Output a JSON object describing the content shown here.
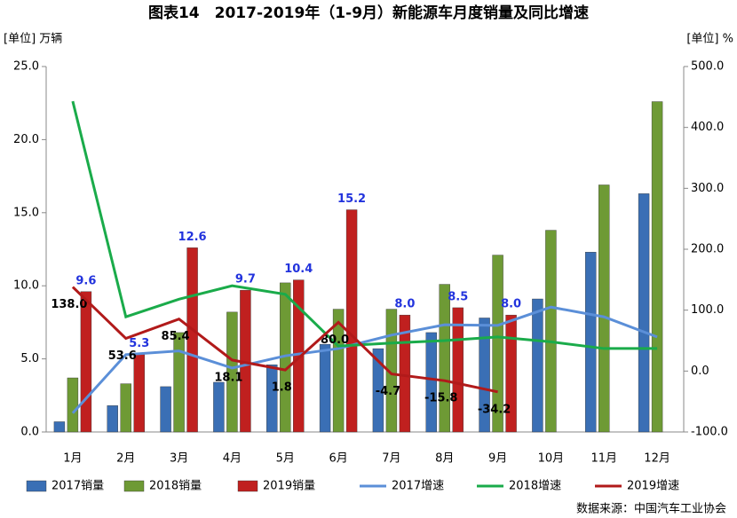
{
  "chart_data": {
    "type": "combo",
    "title": "图表14　2017-2019年（1-9月）新能源车月度销量及同比增速",
    "y_label": "[单位] 万辆",
    "y2_label": "[单位] %",
    "source": "数据来源：中国汽车工业协会",
    "categories": [
      "1月",
      "2月",
      "3月",
      "4月",
      "5月",
      "6月",
      "7月",
      "8月",
      "9月",
      "10月",
      "11月",
      "12月"
    ],
    "ylim": [
      0,
      25
    ],
    "yticks": [
      {
        "value": 0,
        "label": "0.0"
      },
      {
        "value": 5,
        "label": "5.0"
      },
      {
        "value": 10,
        "label": "10.0"
      },
      {
        "value": 15,
        "label": "15.0"
      },
      {
        "value": 20,
        "label": "20.0"
      },
      {
        "value": 25,
        "label": "25.0"
      }
    ],
    "y2lim": [
      -100,
      500
    ],
    "y2ticks": [
      {
        "value": -100,
        "label": "-100.0"
      },
      {
        "value": 0,
        "label": "0.0"
      },
      {
        "value": 100,
        "label": "100.0"
      },
      {
        "value": 200,
        "label": "200.0"
      },
      {
        "value": 300,
        "label": "300.0"
      },
      {
        "value": 400,
        "label": "400.0"
      },
      {
        "value": 500,
        "label": "500.0"
      }
    ],
    "series": [
      {
        "name": "2017销量",
        "type": "bar",
        "color": "#3a6fb5",
        "values": [
          0.7,
          1.8,
          3.1,
          3.4,
          4.6,
          6.0,
          5.7,
          6.8,
          7.8,
          9.1,
          12.3,
          16.3
        ]
      },
      {
        "name": "2018销量",
        "type": "bar",
        "color": "#6e9a35",
        "values": [
          3.7,
          3.3,
          6.8,
          8.2,
          10.2,
          8.4,
          8.4,
          10.1,
          12.1,
          13.8,
          16.9,
          22.6
        ]
      },
      {
        "name": "2019销量",
        "type": "bar",
        "color": "#c0201f",
        "values": [
          9.6,
          5.3,
          12.6,
          9.7,
          10.4,
          15.2,
          8.0,
          8.5,
          8.0,
          null,
          null,
          null
        ],
        "value_labels": [
          "9.6",
          "5.3",
          "12.6",
          "9.7",
          "10.4",
          "15.2",
          "8.0",
          "8.5",
          "8.0",
          null,
          null,
          null
        ]
      },
      {
        "name": "2017增速",
        "type": "line",
        "axis": "y2",
        "color": "#5b8fd8",
        "values": [
          -69,
          27,
          33,
          5,
          25,
          37,
          59,
          76,
          75,
          105,
          89,
          56
        ]
      },
      {
        "name": "2018增速",
        "type": "line",
        "axis": "y2",
        "color": "#1aab4a",
        "values": [
          443,
          89,
          118,
          140,
          126,
          41,
          46,
          50,
          56,
          48,
          37,
          37
        ]
      },
      {
        "name": "2019增速",
        "type": "line",
        "axis": "y2",
        "color": "#b11a1a",
        "values": [
          138.0,
          53.6,
          85.4,
          18.1,
          1.8,
          80.0,
          -4.7,
          -15.8,
          -34.2,
          null,
          null,
          null
        ],
        "value_labels": [
          "138.0",
          "53.6",
          "85.4",
          "18.1",
          "1.8",
          "80.0",
          "-4.7",
          "-15.8",
          "-34.2",
          null,
          null,
          null
        ]
      }
    ]
  }
}
